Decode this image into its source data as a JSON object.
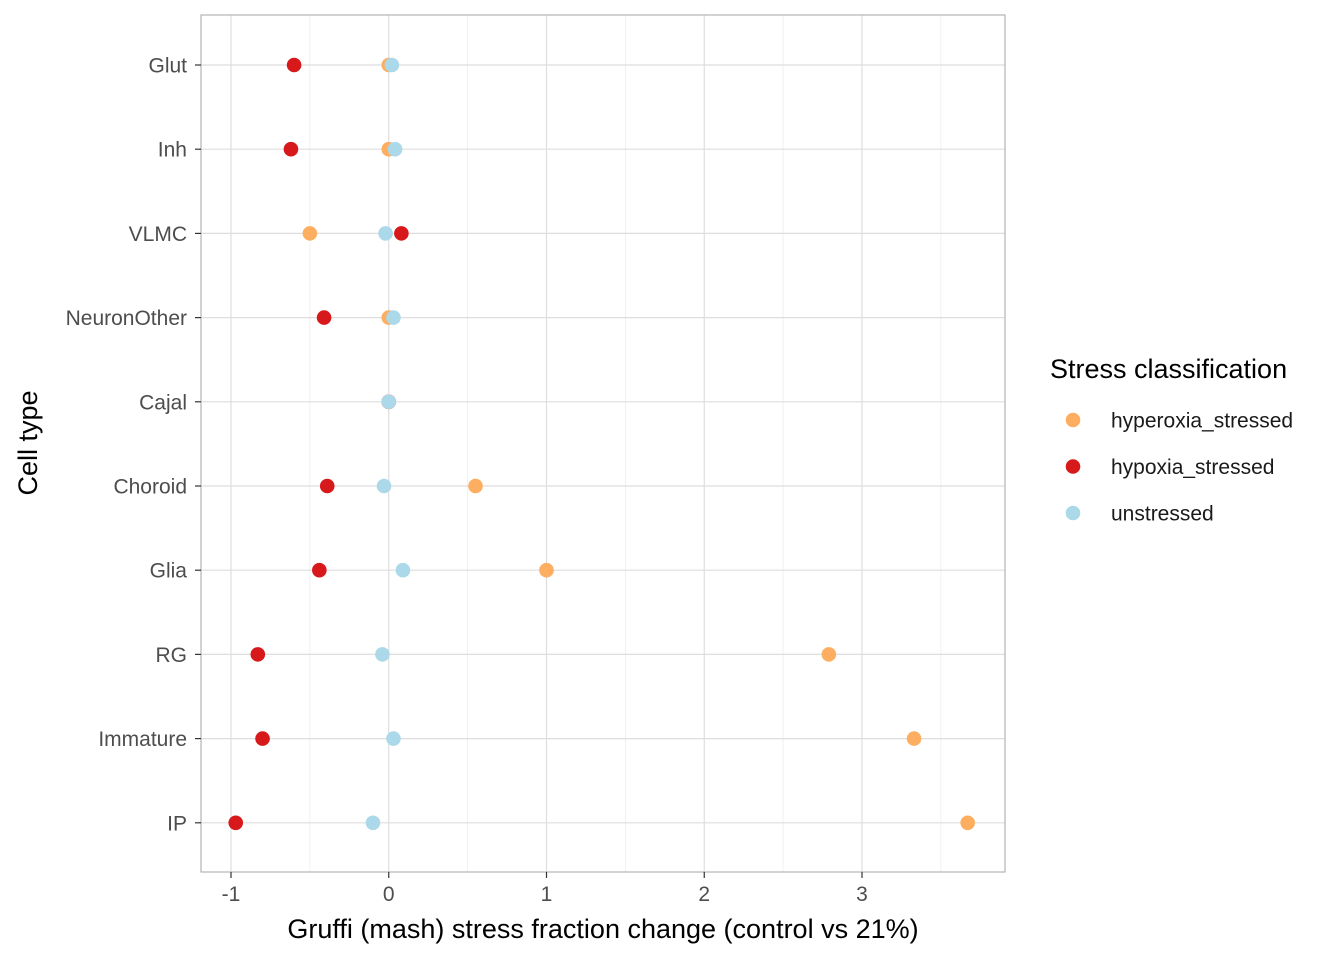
{
  "chart_data": {
    "type": "scatter",
    "title": "",
    "xlabel": "Gruffi (mash) stress fraction change (control vs 21%)",
    "ylabel": "Cell type",
    "xlim": [
      -1.2,
      3.9
    ],
    "x_ticks": [
      {
        "value": -1,
        "label": "-1"
      },
      {
        "value": 0,
        "label": "0"
      },
      {
        "value": 1,
        "label": "1"
      },
      {
        "value": 2,
        "label": "2"
      },
      {
        "value": 3,
        "label": "3"
      }
    ],
    "categories": [
      "Glut",
      "Inh",
      "VLMC",
      "NeuronOther",
      "Cajal",
      "Choroid",
      "Glia",
      "RG",
      "Immature",
      "IP"
    ],
    "grid": true,
    "legend": {
      "title": "Stress classification",
      "position": "right"
    },
    "series": [
      {
        "name": "hyperoxia_stressed",
        "color": "#FDAE61",
        "values": [
          0.0,
          0.0,
          -0.5,
          0.0,
          0.0,
          0.55,
          1.0,
          2.79,
          3.33,
          3.67
        ]
      },
      {
        "name": "hypoxia_stressed",
        "color": "#D7191C",
        "values": [
          -0.6,
          -0.62,
          0.08,
          -0.41,
          0.0,
          -0.39,
          -0.44,
          -0.83,
          -0.8,
          -0.97
        ]
      },
      {
        "name": "unstressed",
        "color": "#ABD9E9",
        "values": [
          0.02,
          0.04,
          -0.02,
          0.03,
          0.0,
          -0.03,
          0.09,
          -0.04,
          0.03,
          -0.1
        ]
      }
    ]
  }
}
